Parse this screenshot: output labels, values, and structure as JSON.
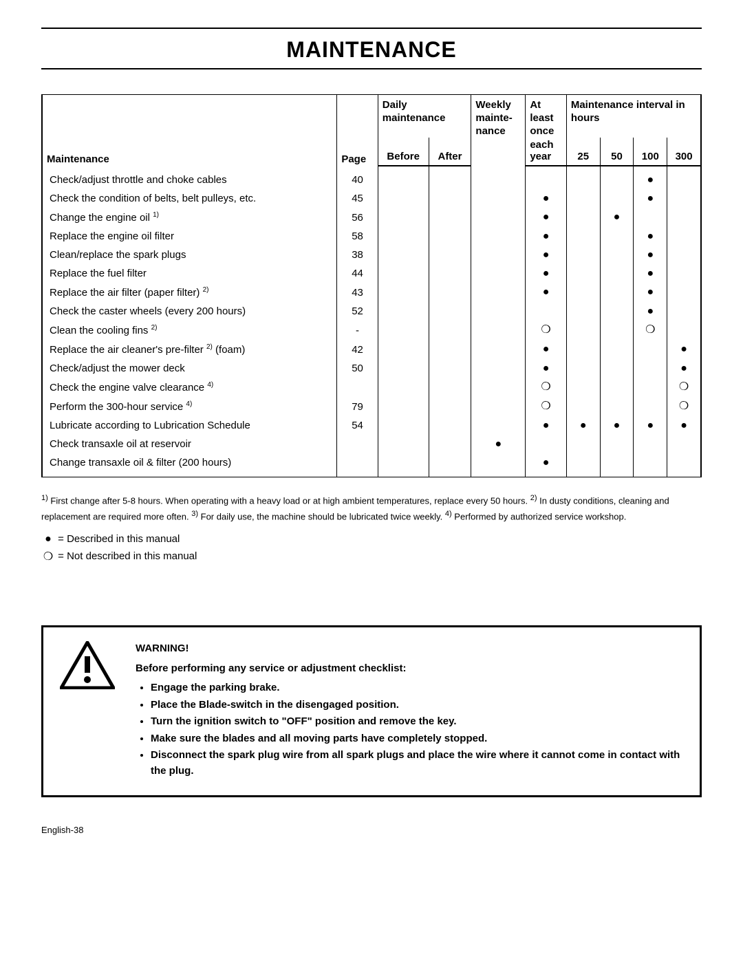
{
  "title": "MAINTENANCE",
  "headers": {
    "maintenance": "Maintenance",
    "page": "Page",
    "daily": "Daily maintenance",
    "before": "Before",
    "after": "After",
    "weekly": "Weekly mainte-nance",
    "yearly_top": "At least once",
    "yearly_bottom": "each year",
    "interval": "Maintenance interval in hours",
    "h25": "25",
    "h50": "50",
    "h100": "100",
    "h300": "300"
  },
  "rows": [
    {
      "task": "Check/adjust throttle and choke cables",
      "page": "40",
      "before": "",
      "after": "",
      "weekly": "",
      "yearly": "",
      "h25": "",
      "h50": "",
      "h100": "●",
      "h300": ""
    },
    {
      "task": "Check the condition of belts, belt pulleys, etc.",
      "page": "45",
      "before": "",
      "after": "",
      "weekly": "",
      "yearly": "●",
      "h25": "",
      "h50": "",
      "h100": "●",
      "h300": ""
    },
    {
      "task": "Change the engine oil",
      "sup": "1)",
      "page": "56",
      "before": "",
      "after": "",
      "weekly": "",
      "yearly": "●",
      "h25": "",
      "h50": "●",
      "h100": "",
      "h300": ""
    },
    {
      "task": "Replace the engine oil filter",
      "page": "58",
      "before": "",
      "after": "",
      "weekly": "",
      "yearly": "●",
      "h25": "",
      "h50": "",
      "h100": "●",
      "h300": ""
    },
    {
      "task": "Clean/replace the spark plugs",
      "page": "38",
      "before": "",
      "after": "",
      "weekly": "",
      "yearly": "●",
      "h25": "",
      "h50": "",
      "h100": "●",
      "h300": ""
    },
    {
      "task": "Replace the fuel filter",
      "page": "44",
      "before": "",
      "after": "",
      "weekly": "",
      "yearly": "●",
      "h25": "",
      "h50": "",
      "h100": "●",
      "h300": ""
    },
    {
      "task": "Replace the air filter (paper filter)",
      "sup": "2)",
      "page": "43",
      "before": "",
      "after": "",
      "weekly": "",
      "yearly": "●",
      "h25": "",
      "h50": "",
      "h100": "●",
      "h300": ""
    },
    {
      "task": "Check the caster wheels (every 200 hours)",
      "page": "52",
      "before": "",
      "after": "",
      "weekly": "",
      "yearly": "",
      "h25": "",
      "h50": "",
      "h100": "●",
      "h300": ""
    },
    {
      "task": "Clean the cooling fins",
      "sup": "2)",
      "page": "-",
      "before": "",
      "after": "",
      "weekly": "",
      "yearly": "❍",
      "h25": "",
      "h50": "",
      "h100": "❍",
      "h300": ""
    },
    {
      "task": "Replace the air cleaner's pre-filter",
      "sup": "2)",
      "post": " (foam)",
      "page": "42",
      "before": "",
      "after": "",
      "weekly": "",
      "yearly": "●",
      "h25": "",
      "h50": "",
      "h100": "",
      "h300": "●"
    },
    {
      "task": "Check/adjust the mower deck",
      "page": "50",
      "before": "",
      "after": "",
      "weekly": "",
      "yearly": "●",
      "h25": "",
      "h50": "",
      "h100": "",
      "h300": "●"
    },
    {
      "task": "Check the engine valve clearance",
      "sup": "4)",
      "page": "",
      "before": "",
      "after": "",
      "weekly": "",
      "yearly": "❍",
      "h25": "",
      "h50": "",
      "h100": "",
      "h300": "❍"
    },
    {
      "task": "Perform the 300-hour service",
      "sup": "4)",
      "page": "79",
      "before": "",
      "after": "",
      "weekly": "",
      "yearly": "❍",
      "h25": "",
      "h50": "",
      "h100": "",
      "h300": "❍"
    },
    {
      "task": "Lubricate according to Lubrication Schedule",
      "page": "54",
      "before": "",
      "after": "",
      "weekly": "",
      "yearly": "●",
      "h25": "●",
      "h50": "●",
      "h100": "●",
      "h300": "●"
    },
    {
      "task": "Check transaxle oil at reservoir",
      "page": "",
      "before": "",
      "after": "",
      "weekly": "●",
      "yearly": "",
      "h25": "",
      "h50": "",
      "h100": "",
      "h300": ""
    },
    {
      "task": "Change transaxle oil & filter (200 hours)",
      "page": "",
      "before": "",
      "after": "",
      "weekly": "",
      "yearly": "●",
      "h25": "",
      "h50": "",
      "h100": "",
      "h300": ""
    }
  ],
  "footnotes": {
    "f1_sup": "1)",
    "f1": " First change after 5-8 hours. When operating with a heavy load or at high ambient temperatures, replace every 50 hours. ",
    "f2_sup": "2)",
    "f2": " In dusty conditions, cleaning and replacement are required more often. ",
    "f3_sup": "3)",
    "f3": " For daily use, the machine should be lubricated twice weekly. ",
    "f4_sup": "4)",
    "f4": " Performed by authorized service workshop."
  },
  "legend": {
    "filled_sym": "●",
    "filled_text": " = Described in this manual",
    "hollow_sym": "❍",
    "hollow_text": " = Not described in this manual"
  },
  "warning": {
    "head": "WARNING!",
    "intro": "Before performing any service or adjustment checklist:",
    "items": [
      "Engage the parking brake.",
      "Place the Blade-switch in the disengaged position.",
      "Turn the ignition switch to \"OFF\" position and remove the key.",
      "Make sure the blades and all moving parts have completely stopped.",
      "Disconnect the spark plug wire from all spark plugs and place the wire where it cannot come in contact with the plug."
    ]
  },
  "footer": "English-38"
}
